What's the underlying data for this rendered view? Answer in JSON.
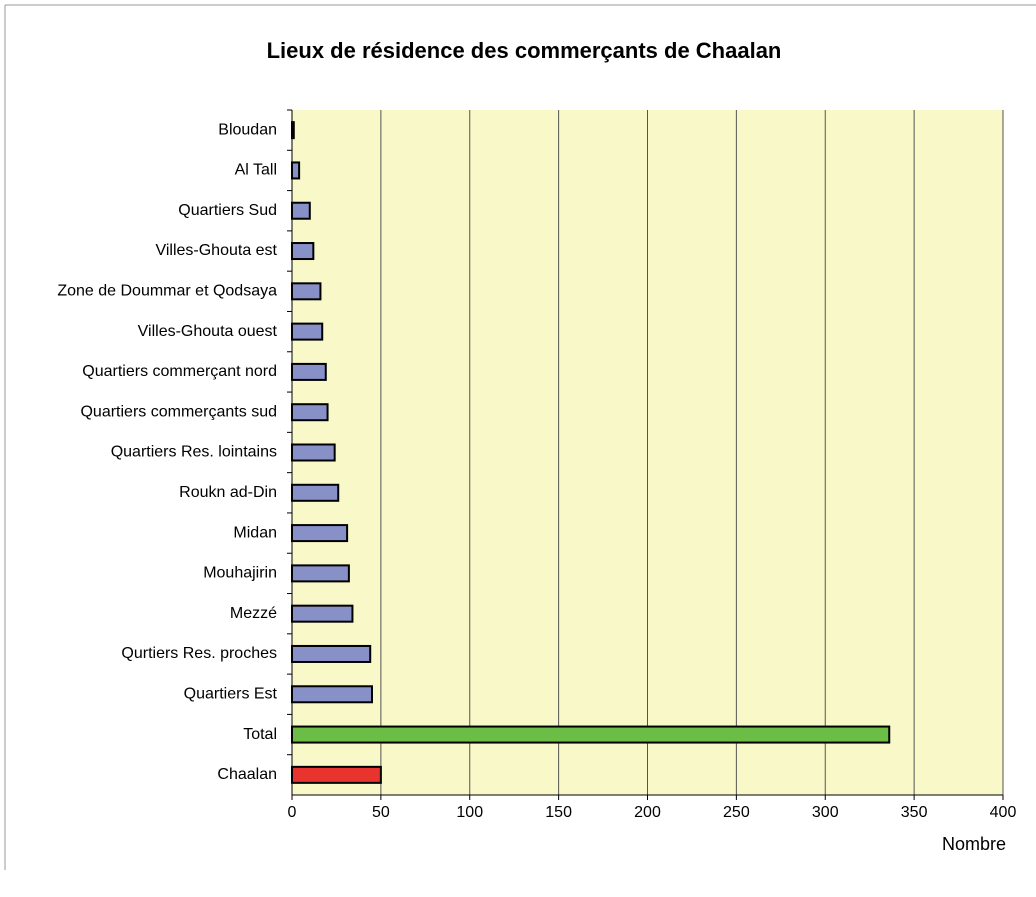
{
  "chart_data": {
    "type": "bar",
    "orientation": "horizontal",
    "title": "Lieux de résidence des commerçants de Chaalan",
    "x_label": "Nombre",
    "categories": [
      "Bloudan",
      "Al Tall",
      "Quartiers  Sud",
      "Villes-Ghouta est",
      "Zone de Doummar et Qodsaya",
      "Villes-Ghouta ouest",
      "Quartiers commerçant nord",
      "Quartiers commerçants  sud",
      "Quartiers Res. lointains",
      "Roukn ad-Din",
      "Midan",
      "Mouhajirin",
      "Mezzé",
      "Qurtiers Res. proches",
      "Quartiers Est",
      "Total",
      "Chaalan"
    ],
    "values": [
      1,
      4,
      10,
      12,
      16,
      17,
      19,
      20,
      24,
      26,
      31,
      32,
      34,
      44,
      45,
      336,
      50
    ],
    "colors": [
      "#8890c8",
      "#8890c8",
      "#8890c8",
      "#8890c8",
      "#8890c8",
      "#8890c8",
      "#8890c8",
      "#8890c8",
      "#8890c8",
      "#8890c8",
      "#8890c8",
      "#8890c8",
      "#8890c8",
      "#8890c8",
      "#8890c8",
      "#6cbd45",
      "#e8332f"
    ],
    "xlim": [
      0,
      400
    ],
    "xticks": [
      0,
      50,
      100,
      150,
      200,
      250,
      300,
      350,
      400
    ],
    "grid": true,
    "background": "#f8f8c8"
  }
}
